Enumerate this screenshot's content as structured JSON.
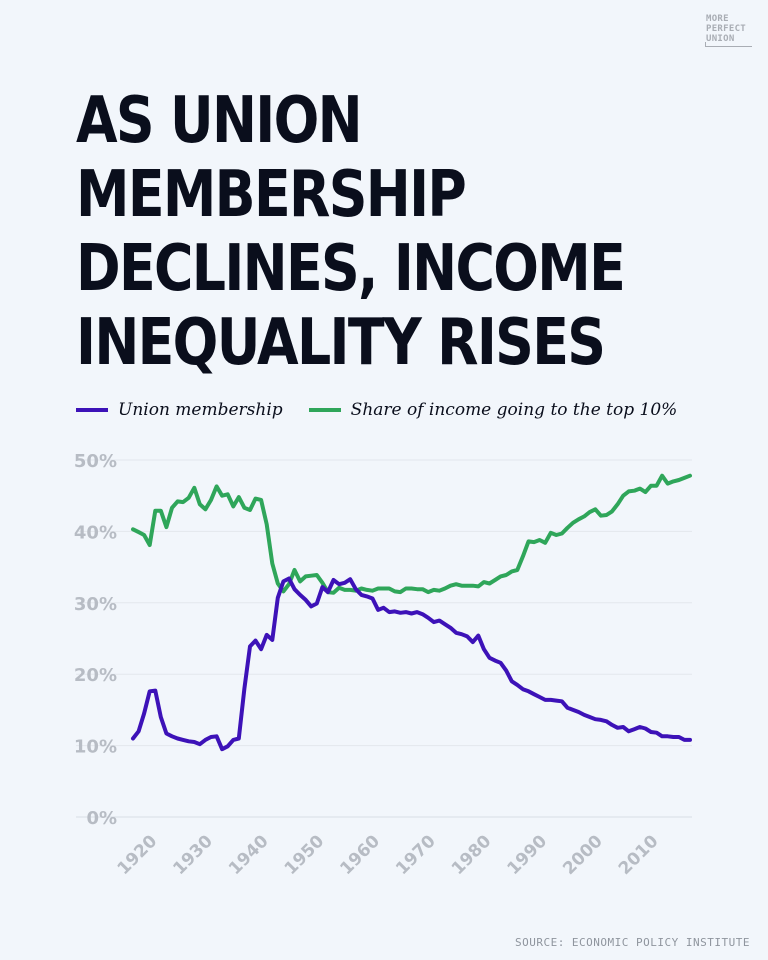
{
  "brand": {
    "logo_lines": [
      "MORE",
      "PERFECT",
      "UNION"
    ]
  },
  "headline_lines": [
    "AS UNION",
    "MEMBERSHIP",
    "DECLINES, INCOME",
    "INEQUALITY RISES"
  ],
  "source": "SOURCE: ECONOMIC POLICY INSTITUTE",
  "colors": {
    "background": "#f2f6fb",
    "union": "#3d12b8",
    "share": "#2fa65a",
    "text": "#0a0e1c",
    "axis": "#b7bcc4"
  },
  "chart_data": {
    "type": "line",
    "title": "AS UNION MEMBERSHIP DECLINES, INCOME INEQUALITY RISES",
    "xlabel": "",
    "ylabel": "",
    "xlim": [
      1917,
      2017
    ],
    "ylim": [
      0,
      50
    ],
    "x_ticks": [
      "1920",
      "1930",
      "1940",
      "1950",
      "1960",
      "1970",
      "1980",
      "1990",
      "2000",
      "2010"
    ],
    "y_ticks": [
      "0%",
      "10%",
      "20%",
      "30%",
      "40%",
      "50%"
    ],
    "grid": true,
    "legend": "top-left",
    "series": [
      {
        "name": "Union membership",
        "color": "#3d12b8",
        "points": [
          [
            1917,
            11.0
          ],
          [
            1918,
            12.0
          ],
          [
            1919,
            14.5
          ],
          [
            1920,
            17.6
          ],
          [
            1921,
            17.7
          ],
          [
            1922,
            14.0
          ],
          [
            1923,
            11.7
          ],
          [
            1924,
            11.3
          ],
          [
            1925,
            11.0
          ],
          [
            1926,
            10.8
          ],
          [
            1927,
            10.6
          ],
          [
            1928,
            10.5
          ],
          [
            1929,
            10.2
          ],
          [
            1930,
            10.8
          ],
          [
            1931,
            11.2
          ],
          [
            1932,
            11.3
          ],
          [
            1933,
            9.5
          ],
          [
            1934,
            9.9
          ],
          [
            1935,
            10.8
          ],
          [
            1936,
            11.0
          ],
          [
            1937,
            18.0
          ],
          [
            1938,
            23.9
          ],
          [
            1939,
            24.7
          ],
          [
            1940,
            23.5
          ],
          [
            1941,
            25.5
          ],
          [
            1942,
            24.8
          ],
          [
            1943,
            30.7
          ],
          [
            1944,
            33.0
          ],
          [
            1945,
            33.4
          ],
          [
            1946,
            31.9
          ],
          [
            1947,
            31.1
          ],
          [
            1948,
            30.4
          ],
          [
            1949,
            29.5
          ],
          [
            1950,
            29.9
          ],
          [
            1951,
            32.2
          ],
          [
            1952,
            31.5
          ],
          [
            1953,
            33.2
          ],
          [
            1954,
            32.6
          ],
          [
            1955,
            32.8
          ],
          [
            1956,
            33.3
          ],
          [
            1957,
            31.9
          ],
          [
            1958,
            31.1
          ],
          [
            1959,
            30.9
          ],
          [
            1960,
            30.6
          ],
          [
            1961,
            29.0
          ],
          [
            1962,
            29.3
          ],
          [
            1963,
            28.7
          ],
          [
            1964,
            28.8
          ],
          [
            1965,
            28.6
          ],
          [
            1966,
            28.7
          ],
          [
            1967,
            28.5
          ],
          [
            1968,
            28.7
          ],
          [
            1969,
            28.4
          ],
          [
            1970,
            27.9
          ],
          [
            1971,
            27.3
          ],
          [
            1972,
            27.5
          ],
          [
            1973,
            27.0
          ],
          [
            1974,
            26.5
          ],
          [
            1975,
            25.8
          ],
          [
            1976,
            25.6
          ],
          [
            1977,
            25.3
          ],
          [
            1978,
            24.5
          ],
          [
            1979,
            25.4
          ],
          [
            1980,
            23.5
          ],
          [
            1981,
            22.3
          ],
          [
            1982,
            21.9
          ],
          [
            1983,
            21.6
          ],
          [
            1984,
            20.5
          ],
          [
            1985,
            19.0
          ],
          [
            1986,
            18.5
          ],
          [
            1987,
            17.9
          ],
          [
            1988,
            17.6
          ],
          [
            1989,
            17.2
          ],
          [
            1990,
            16.8
          ],
          [
            1991,
            16.4
          ],
          [
            1992,
            16.4
          ],
          [
            1993,
            16.3
          ],
          [
            1994,
            16.2
          ],
          [
            1995,
            15.3
          ],
          [
            1996,
            15.0
          ],
          [
            1997,
            14.7
          ],
          [
            1998,
            14.3
          ],
          [
            1999,
            14.0
          ],
          [
            2000,
            13.7
          ],
          [
            2001,
            13.6
          ],
          [
            2002,
            13.4
          ],
          [
            2003,
            12.9
          ],
          [
            2004,
            12.5
          ],
          [
            2005,
            12.6
          ],
          [
            2006,
            12.0
          ],
          [
            2007,
            12.3
          ],
          [
            2008,
            12.6
          ],
          [
            2009,
            12.4
          ],
          [
            2010,
            11.9
          ],
          [
            2011,
            11.8
          ],
          [
            2012,
            11.3
          ],
          [
            2013,
            11.3
          ],
          [
            2014,
            11.2
          ],
          [
            2015,
            11.2
          ],
          [
            2016,
            10.8
          ],
          [
            2017,
            10.8
          ]
        ]
      },
      {
        "name": "Share of income going to the top 10%",
        "color": "#2fa65a",
        "points": [
          [
            1917,
            40.3
          ],
          [
            1918,
            39.9
          ],
          [
            1919,
            39.5
          ],
          [
            1920,
            38.1
          ],
          [
            1921,
            42.9
          ],
          [
            1922,
            42.9
          ],
          [
            1923,
            40.6
          ],
          [
            1924,
            43.3
          ],
          [
            1925,
            44.2
          ],
          [
            1926,
            44.1
          ],
          [
            1927,
            44.7
          ],
          [
            1928,
            46.1
          ],
          [
            1929,
            43.8
          ],
          [
            1930,
            43.1
          ],
          [
            1931,
            44.4
          ],
          [
            1932,
            46.3
          ],
          [
            1933,
            45.0
          ],
          [
            1934,
            45.2
          ],
          [
            1935,
            43.5
          ],
          [
            1936,
            44.8
          ],
          [
            1937,
            43.3
          ],
          [
            1938,
            43.0
          ],
          [
            1939,
            44.6
          ],
          [
            1940,
            44.4
          ],
          [
            1941,
            41.0
          ],
          [
            1942,
            35.5
          ],
          [
            1943,
            32.7
          ],
          [
            1944,
            31.6
          ],
          [
            1945,
            32.6
          ],
          [
            1946,
            34.6
          ],
          [
            1947,
            33.0
          ],
          [
            1948,
            33.7
          ],
          [
            1949,
            33.8
          ],
          [
            1950,
            33.9
          ],
          [
            1951,
            32.8
          ],
          [
            1952,
            31.5
          ],
          [
            1953,
            31.4
          ],
          [
            1954,
            32.1
          ],
          [
            1955,
            31.8
          ],
          [
            1956,
            31.8
          ],
          [
            1957,
            31.7
          ],
          [
            1958,
            32.0
          ],
          [
            1959,
            31.8
          ],
          [
            1960,
            31.7
          ],
          [
            1961,
            32.0
          ],
          [
            1962,
            32.0
          ],
          [
            1963,
            32.0
          ],
          [
            1964,
            31.6
          ],
          [
            1965,
            31.5
          ],
          [
            1966,
            32.0
          ],
          [
            1967,
            32.0
          ],
          [
            1968,
            31.9
          ],
          [
            1969,
            31.9
          ],
          [
            1970,
            31.5
          ],
          [
            1971,
            31.8
          ],
          [
            1972,
            31.7
          ],
          [
            1973,
            32.0
          ],
          [
            1974,
            32.4
          ],
          [
            1975,
            32.6
          ],
          [
            1976,
            32.4
          ],
          [
            1977,
            32.4
          ],
          [
            1978,
            32.4
          ],
          [
            1979,
            32.3
          ],
          [
            1980,
            32.9
          ],
          [
            1981,
            32.7
          ],
          [
            1982,
            33.2
          ],
          [
            1983,
            33.7
          ],
          [
            1984,
            33.9
          ],
          [
            1985,
            34.4
          ],
          [
            1986,
            34.6
          ],
          [
            1987,
            36.5
          ],
          [
            1988,
            38.6
          ],
          [
            1989,
            38.5
          ],
          [
            1990,
            38.8
          ],
          [
            1991,
            38.4
          ],
          [
            1992,
            39.8
          ],
          [
            1993,
            39.5
          ],
          [
            1994,
            39.7
          ],
          [
            1995,
            40.5
          ],
          [
            1996,
            41.2
          ],
          [
            1997,
            41.7
          ],
          [
            1998,
            42.1
          ],
          [
            1999,
            42.7
          ],
          [
            2000,
            43.1
          ],
          [
            2001,
            42.2
          ],
          [
            2002,
            42.3
          ],
          [
            2003,
            42.8
          ],
          [
            2004,
            43.8
          ],
          [
            2005,
            45.0
          ],
          [
            2006,
            45.6
          ],
          [
            2007,
            45.7
          ],
          [
            2008,
            46.0
          ],
          [
            2009,
            45.5
          ],
          [
            2010,
            46.4
          ],
          [
            2011,
            46.4
          ],
          [
            2012,
            47.8
          ],
          [
            2013,
            46.7
          ],
          [
            2014,
            47.0
          ],
          [
            2015,
            47.2
          ],
          [
            2016,
            47.5
          ],
          [
            2017,
            47.8
          ]
        ]
      }
    ]
  }
}
